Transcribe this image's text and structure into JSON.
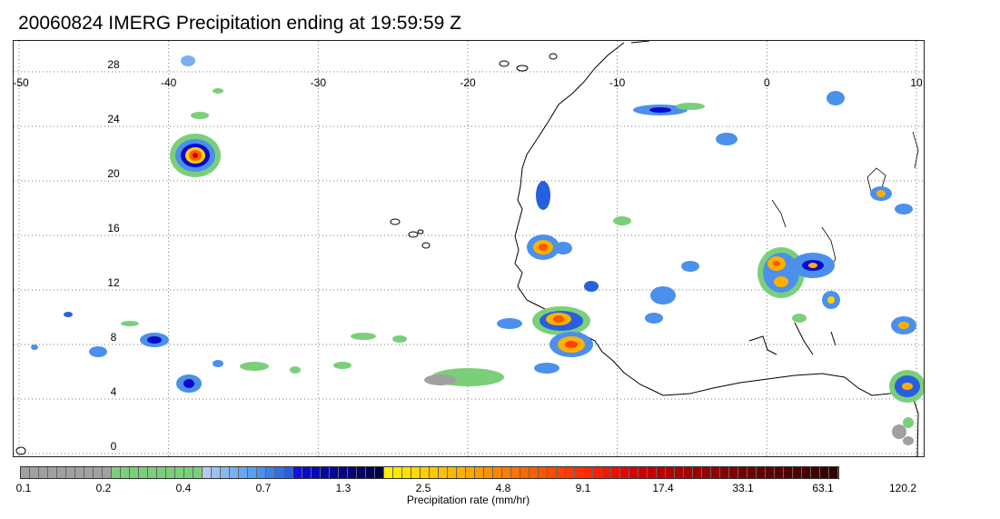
{
  "title": "20060824 IMERG Precipitation ending at 19:59:59 Z",
  "map": {
    "lon_range": [
      -50,
      10
    ],
    "lat_range": [
      0,
      30
    ],
    "lon_labels": [
      "-50",
      "-40",
      "-30",
      "-20",
      "-10",
      "0",
      "10"
    ],
    "lon_values": [
      -50,
      -40,
      -30,
      -20,
      -10,
      0,
      10
    ],
    "lat_labels": [
      "0",
      "4",
      "8",
      "12",
      "16",
      "20",
      "24",
      "28"
    ],
    "lat_values": [
      0,
      4,
      8,
      12,
      16,
      20,
      24,
      28
    ],
    "grid": "dotted",
    "land_outline_color": "#000000"
  },
  "colorbar": {
    "title": "Precipitation rate (mm/hr)",
    "tick_labels": [
      "0.1",
      "0.2",
      "0.4",
      "0.7",
      "1.3",
      "2.5",
      "4.8",
      "9.1",
      "17.4",
      "33.1",
      "63.1",
      "120.2"
    ],
    "colors": [
      "#a0a0a0",
      "#a0a0a0",
      "#a0a0a0",
      "#a0a0a0",
      "#a0a0a0",
      "#a0a0a0",
      "#a0a0a0",
      "#a0a0a0",
      "#a0a0a0",
      "#a0a0a0",
      "#7ad07a",
      "#7ad07a",
      "#7ad07a",
      "#7ad07a",
      "#7ad07a",
      "#7ad07a",
      "#7ad07a",
      "#7ad07a",
      "#7ad07a",
      "#7ad07a",
      "#b8c8f0",
      "#9cc0f0",
      "#88b8f0",
      "#78b0f0",
      "#68a8f0",
      "#58a0f0",
      "#4a90ec",
      "#3c80e8",
      "#3070e4",
      "#2660e0",
      "#1010e0",
      "#0a0acc",
      "#0808b8",
      "#0606a8",
      "#050598",
      "#040488",
      "#030378",
      "#020268",
      "#010158",
      "#000048",
      "#fff000",
      "#ffe800",
      "#ffe000",
      "#ffd800",
      "#ffd000",
      "#ffc800",
      "#ffc000",
      "#ffb800",
      "#ffb000",
      "#ffa800",
      "#ff9a00",
      "#ff9000",
      "#ff8600",
      "#ff7c00",
      "#ff7200",
      "#ff6800",
      "#ff5e00",
      "#ff5400",
      "#ff4a00",
      "#ff4000",
      "#ff3a00",
      "#ff3000",
      "#ff2800",
      "#f82000",
      "#f01800",
      "#e81000",
      "#e00800",
      "#d80000",
      "#d00000",
      "#c80000",
      "#c00000",
      "#b80000",
      "#b00000",
      "#a80000",
      "#a00000",
      "#980000",
      "#900000",
      "#880000",
      "#800000",
      "#780000",
      "#6e0000",
      "#660000",
      "#5e0000",
      "#580000",
      "#520000",
      "#4c0000",
      "#460000",
      "#400000",
      "#3a0000",
      "#340000"
    ]
  }
}
